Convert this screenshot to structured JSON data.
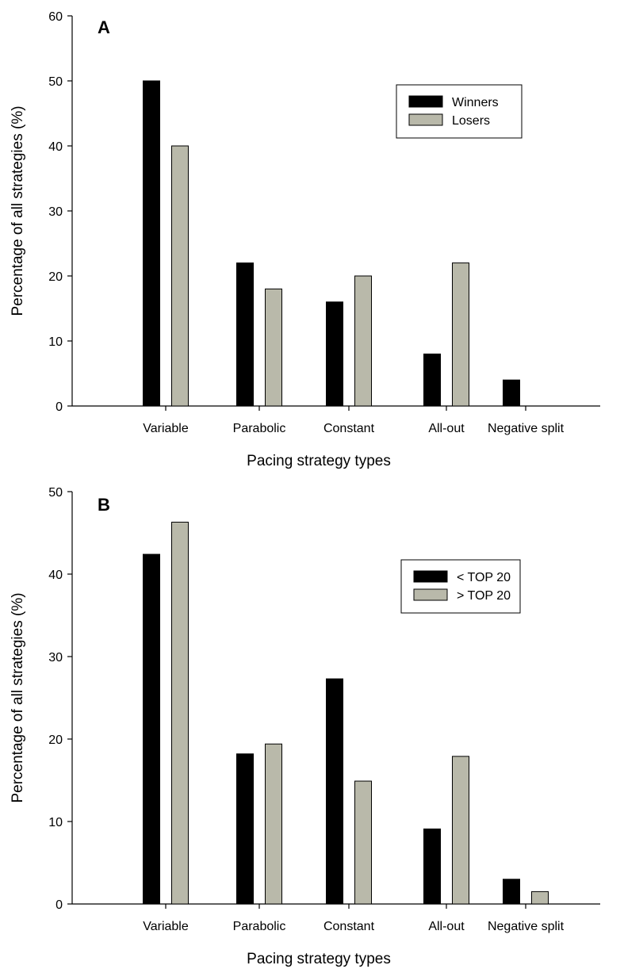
{
  "colors": {
    "series1": "#000000",
    "series2": "#b9b9aa",
    "axis": "#000000",
    "background": "#ffffff"
  },
  "chart_data": [
    {
      "type": "bar",
      "panel_label": "A",
      "xlabel": "Pacing strategy types",
      "ylabel": "Percentage of all strategies (%)",
      "ylim": [
        0,
        60
      ],
      "yticks": [
        "0",
        "10",
        "20",
        "30",
        "40",
        "50",
        "60"
      ],
      "categories": [
        "Variable",
        "Parabolic",
        "Constant",
        "All-out",
        "Negative split"
      ],
      "series": [
        {
          "name": "Winners",
          "values": [
            50,
            22,
            16,
            8,
            4
          ]
        },
        {
          "name": "Losers",
          "values": [
            40,
            18,
            20,
            22,
            0
          ]
        }
      ],
      "legend_position": "top-right",
      "grid": false
    },
    {
      "type": "bar",
      "panel_label": "B",
      "xlabel": "Pacing strategy types",
      "ylabel": "Percentage of all strategies  (%)",
      "ylim": [
        0,
        50
      ],
      "yticks": [
        "0",
        "10",
        "20",
        "30",
        "40",
        "50"
      ],
      "categories": [
        "Variable",
        "Parabolic",
        "Constant",
        "All-out",
        "Negative split"
      ],
      "series": [
        {
          "name": "< TOP 20",
          "values": [
            42.4,
            18.2,
            27.3,
            9.1,
            3.0
          ]
        },
        {
          "name": "> TOP 20",
          "values": [
            46.3,
            19.4,
            14.9,
            17.9,
            1.5
          ]
        }
      ],
      "legend_position": "top-right",
      "grid": false
    }
  ]
}
